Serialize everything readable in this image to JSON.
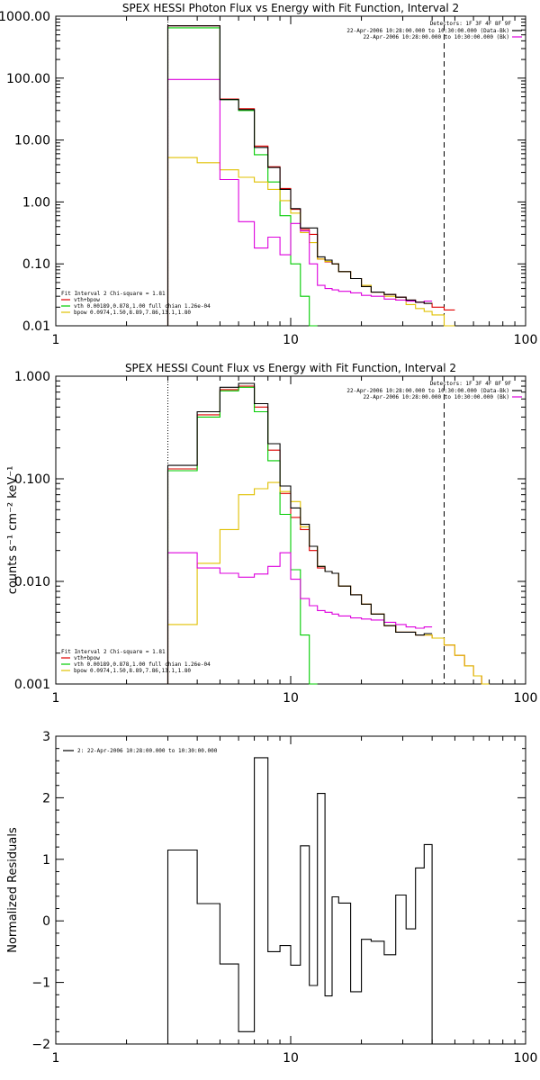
{
  "colors": {
    "data": "#000000",
    "total": "#e00000",
    "vth": "#00cc00",
    "bpow": "#e0c000",
    "bk": "#dd00dd"
  },
  "chart_data": [
    {
      "type": "line",
      "title": "SPEX HESSI Photon Flux vs Energy with Fit Function, Interval 2",
      "xscale": "log",
      "yscale": "log",
      "xlim": [
        1,
        100
      ],
      "ylim": [
        0.01,
        1000
      ],
      "xtick_labels": [
        "1",
        "10",
        "100"
      ],
      "ytick_labels": [
        "1000.00",
        "100.00",
        "10.00",
        "1.00",
        "0.10",
        "0.01"
      ],
      "yticks": [
        1000,
        100,
        10,
        1,
        0.1,
        0.01
      ],
      "edges": [
        3,
        4,
        5,
        6,
        7,
        8,
        9,
        10,
        11,
        12,
        13,
        14,
        15,
        16,
        18,
        20,
        22,
        25,
        28,
        31,
        34,
        37,
        40,
        45,
        50
      ],
      "vlines": [
        {
          "x": 3,
          "style": "dotted"
        },
        {
          "x": 45,
          "style": "dashed"
        }
      ],
      "legend_tr": {
        "header": "Detectors: 1F 3F 4F 8F 9F",
        "entries": [
          {
            "label": "22-Apr-2006 10:28:00.000 to 10:30:00.000 (Data-Bk)",
            "color": "#000000"
          },
          {
            "label": "22-Apr-2006 10:28:00.000 to 10:30:00.000 (Bk)",
            "color": "#dd00dd"
          }
        ]
      },
      "legend_bl": {
        "header": "Fit Interval 2   Chi-square = 1.81",
        "entries": [
          {
            "label": "vth+bpow",
            "color": "#e00000"
          },
          {
            "label": "vth 0.00189,0.878,1.00   full chian 1.26e-04",
            "color": "#00cc00"
          },
          {
            "label": "bpow 0.0974,1.50,8.89,7.86,13.1,1.80",
            "color": "#e0c000"
          }
        ]
      },
      "series": [
        {
          "color_key": "data",
          "values": [
            700,
            700,
            45,
            31,
            7.6,
            3.6,
            1.6,
            0.78,
            0.38,
            0.38,
            0.13,
            0.115,
            0.1,
            0.075,
            0.058,
            0.043,
            0.035,
            0.032,
            0.029,
            0.026,
            0.024,
            0.023
          ]
        },
        {
          "color_key": "total",
          "values": [
            700,
            700,
            46,
            32,
            8.0,
            3.7,
            1.65,
            0.76,
            0.36,
            0.3,
            0.12,
            0.108,
            0.1,
            0.075,
            0.058,
            0.043,
            0.035,
            0.032,
            0.029,
            0.026,
            0.024,
            0.023,
            0.02,
            0.018
          ]
        },
        {
          "color_key": "vth",
          "values": [
            650,
            650,
            45,
            30,
            5.8,
            2.1,
            0.6,
            0.1,
            0.03,
            0.008
          ]
        },
        {
          "color_key": "bpow",
          "values": [
            5.2,
            4.3,
            3.3,
            2.5,
            2.1,
            1.6,
            1.05,
            0.66,
            0.32,
            0.22,
            0.12,
            0.11,
            0.1,
            0.075,
            0.058,
            0.045,
            0.035,
            0.03,
            0.026,
            0.022,
            0.019,
            0.017,
            0.015,
            0.01
          ]
        },
        {
          "color_key": "bk",
          "values": [
            95,
            95,
            2.3,
            0.48,
            0.18,
            0.27,
            0.14,
            0.45,
            0.34,
            0.1,
            0.045,
            0.04,
            0.038,
            0.036,
            0.034,
            0.031,
            0.03,
            0.027,
            0.026,
            0.025,
            0.024,
            0.025
          ]
        }
      ]
    },
    {
      "type": "line",
      "title": "SPEX HESSI Count Flux vs Energy with Fit Function, Interval 2",
      "ylabel": "counts s⁻¹ cm⁻² keV⁻¹",
      "xscale": "log",
      "yscale": "log",
      "xlim": [
        1,
        100
      ],
      "ylim": [
        0.001,
        1.0
      ],
      "xtick_labels": [
        "1",
        "10",
        "100"
      ],
      "ytick_labels": [
        "1.000",
        "0.100",
        "0.010",
        "0.001"
      ],
      "yticks": [
        1,
        0.1,
        0.01,
        0.001
      ],
      "edges": [
        3,
        4,
        5,
        6,
        7,
        8,
        9,
        10,
        11,
        12,
        13,
        14,
        15,
        16,
        18,
        20,
        22,
        25,
        28,
        31,
        34,
        37,
        40,
        45,
        50,
        55,
        60,
        65,
        70
      ],
      "vlines": [
        {
          "x": 3,
          "style": "dotted"
        },
        {
          "x": 45,
          "style": "dashed"
        }
      ],
      "legend_tr": {
        "header": "Detectors: 1F 3F 4F 8F 9F",
        "entries": [
          {
            "label": "22-Apr-2006 10:28:00.000 to 10:30:00.000 (Data-Bk)",
            "color": "#000000"
          },
          {
            "label": "22-Apr-2006 10:28:00.000 to 10:30:00.000 (Bk)",
            "color": "#dd00dd"
          }
        ]
      },
      "legend_bl": {
        "header": "Fit Interval 2   Chi-square = 1.81",
        "entries": [
          {
            "label": "vth+bpow",
            "color": "#e00000"
          },
          {
            "label": "vth 0.00189,0.878,1.00   full chian 1.26e-04",
            "color": "#00cc00"
          },
          {
            "label": "bpow 0.0974,1.50,8.89,7.86,13.1,1.80",
            "color": "#e0c000"
          }
        ]
      },
      "series": [
        {
          "color_key": "data",
          "values": [
            0.135,
            0.45,
            0.78,
            0.85,
            0.54,
            0.22,
            0.085,
            0.052,
            0.036,
            0.022,
            0.014,
            0.0125,
            0.012,
            0.009,
            0.0074,
            0.006,
            0.0048,
            0.0037,
            0.0032,
            0.0032,
            0.003,
            0.0031
          ]
        },
        {
          "color_key": "total",
          "values": [
            0.125,
            0.42,
            0.74,
            0.8,
            0.5,
            0.19,
            0.072,
            0.042,
            0.032,
            0.02,
            0.0135,
            0.0125,
            0.012,
            0.009,
            0.0074,
            0.006,
            0.0048,
            0.0037,
            0.0032,
            0.0032,
            0.003,
            0.003,
            0.0028,
            0.0024,
            0.0019,
            0.0015,
            0.0012,
            0.001
          ]
        },
        {
          "color_key": "vth",
          "values": [
            0.12,
            0.4,
            0.72,
            0.78,
            0.45,
            0.15,
            0.045,
            0.013,
            0.003,
            0.0008
          ]
        },
        {
          "color_key": "bpow",
          "values": [
            0.0038,
            0.015,
            0.032,
            0.07,
            0.08,
            0.092,
            0.075,
            0.06,
            0.034,
            0.022,
            0.014,
            0.0125,
            0.012,
            0.009,
            0.0074,
            0.006,
            0.0048,
            0.0037,
            0.0032,
            0.0032,
            0.003,
            0.003,
            0.0028,
            0.0024,
            0.0019,
            0.0015,
            0.0012,
            0.001
          ]
        },
        {
          "color_key": "bk",
          "values": [
            0.019,
            0.0135,
            0.012,
            0.011,
            0.0118,
            0.014,
            0.019,
            0.0105,
            0.0068,
            0.0058,
            0.0052,
            0.005,
            0.0048,
            0.0046,
            0.0044,
            0.0043,
            0.0042,
            0.004,
            0.0038,
            0.0036,
            0.0035,
            0.0036
          ]
        }
      ]
    },
    {
      "type": "line",
      "ylabel": "Normalized Residuals",
      "xscale": "log",
      "yscale": "linear",
      "xlim": [
        1,
        100
      ],
      "ylim": [
        -2,
        3
      ],
      "xtick_labels": [
        "1",
        "10",
        "100"
      ],
      "ytick_labels": [
        "3",
        "2",
        "1",
        "0",
        "−1",
        "−2"
      ],
      "yticks": [
        3,
        2,
        1,
        0,
        -1,
        -2
      ],
      "legend": {
        "label": "2: 22-Apr-2006 10:28:00.000 to 10:30:00.000",
        "color": "#000000"
      },
      "edges": [
        3,
        4,
        5,
        6,
        7,
        8,
        9,
        10,
        11,
        12,
        13,
        14,
        15,
        16,
        18,
        20,
        22,
        25,
        28,
        31,
        34,
        37,
        40,
        45
      ],
      "series": [
        {
          "color_key": "data",
          "values": [
            1.15,
            0.28,
            -0.7,
            -1.8,
            2.65,
            -0.5,
            -0.4,
            -0.72,
            1.22,
            -1.05,
            2.07,
            -1.22,
            0.39,
            0.29,
            -1.15,
            -0.3,
            -0.33,
            -0.55,
            0.42,
            -0.13,
            0.86,
            1.24
          ]
        }
      ]
    }
  ]
}
